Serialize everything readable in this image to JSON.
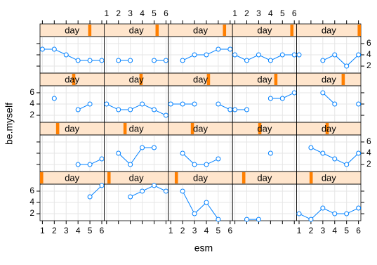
{
  "chart_data": {
    "type": "line",
    "x_label": "esm",
    "y_label": "be.myself",
    "xlim": [
      0.8,
      6.2
    ],
    "xticks": [
      1,
      2,
      3,
      4,
      5,
      6
    ],
    "ylim": [
      0.76,
      7.24
    ],
    "yticks": [
      2,
      4,
      6
    ],
    "grid": true,
    "color": "#0080ff",
    "strip_color": "#ffe5cc",
    "level_color": "#ff7f00",
    "level_lim": [
      0.5,
      20.5
    ],
    "panels": [
      {
        "strip": "day",
        "level": 1,
        "x": [
          5,
          6
        ],
        "y": [
          5,
          7
        ]
      },
      {
        "strip": "day",
        "level": 2,
        "x": [
          3,
          4,
          5,
          6
        ],
        "y": [
          5,
          6,
          7,
          6
        ]
      },
      {
        "strip": "day",
        "level": 3,
        "x": [
          2,
          3,
          4,
          5
        ],
        "y": [
          6,
          2,
          4,
          1
        ]
      },
      {
        "strip": "day",
        "level": 4,
        "x": [
          2,
          3
        ],
        "y": [
          1,
          1
        ]
      },
      {
        "strip": "day",
        "level": 5,
        "x": [
          1,
          2,
          3,
          4,
          5,
          6
        ],
        "y": [
          2,
          1,
          3,
          2,
          2,
          3
        ]
      },
      {
        "strip": "day",
        "level": 6,
        "x": [
          4,
          5,
          6
        ],
        "y": [
          2,
          2,
          3
        ]
      },
      {
        "strip": "day",
        "level": 7,
        "x": [
          2,
          3,
          4,
          5
        ],
        "y": [
          4,
          2,
          5,
          5
        ]
      },
      {
        "strip": "day",
        "level": 8,
        "x": [
          2,
          3,
          4,
          5
        ],
        "y": [
          4,
          2,
          2,
          3
        ]
      },
      {
        "strip": "day",
        "level": 9,
        "x": [
          4
        ],
        "y": [
          4
        ]
      },
      {
        "strip": "day",
        "level": 10,
        "x": [
          2,
          3,
          4,
          5,
          6
        ],
        "y": [
          5,
          4,
          3,
          2,
          4
        ]
      },
      {
        "strip": "day",
        "level": 11,
        "x": [
          2,
          3,
          4,
          5
        ],
        "y": [
          5,
          null,
          3,
          4
        ]
      },
      {
        "strip": "day",
        "level": 12,
        "x": [
          1,
          2,
          3,
          4,
          5,
          6
        ],
        "y": [
          4,
          3,
          3,
          4,
          3,
          2
        ]
      },
      {
        "strip": "day",
        "level": 13,
        "x": [
          1,
          2,
          3,
          4,
          5,
          6
        ],
        "y": [
          4,
          4,
          4,
          null,
          4,
          3
        ]
      },
      {
        "strip": "day",
        "level": 14,
        "x": [
          1,
          2,
          3,
          4,
          5,
          6
        ],
        "y": [
          3,
          3,
          null,
          5,
          5,
          6
        ]
      },
      {
        "strip": "day",
        "level": 15,
        "x": [
          3,
          4,
          5,
          6
        ],
        "y": [
          6,
          4,
          null,
          4
        ]
      },
      {
        "strip": "day",
        "level": 16,
        "x": [
          1,
          2,
          3,
          4,
          5,
          6
        ],
        "y": [
          5,
          5,
          4,
          3,
          3,
          3
        ]
      },
      {
        "strip": "day",
        "level": 17,
        "x": [
          2,
          3,
          4,
          5,
          6
        ],
        "y": [
          3,
          3,
          null,
          3,
          3
        ]
      },
      {
        "strip": "day",
        "level": 18,
        "x": [
          2,
          3,
          4,
          5,
          6
        ],
        "y": [
          3,
          4,
          4,
          5,
          5
        ]
      },
      {
        "strip": "day",
        "level": 19,
        "x": [
          1,
          2,
          3,
          4,
          5,
          6
        ],
        "y": [
          4,
          3,
          4,
          3,
          4,
          4
        ]
      },
      {
        "strip": "day",
        "level": 20,
        "x": [
          1,
          2,
          3,
          4,
          5,
          6
        ],
        "y": [
          4,
          null,
          3,
          4,
          2,
          4
        ]
      }
    ]
  }
}
